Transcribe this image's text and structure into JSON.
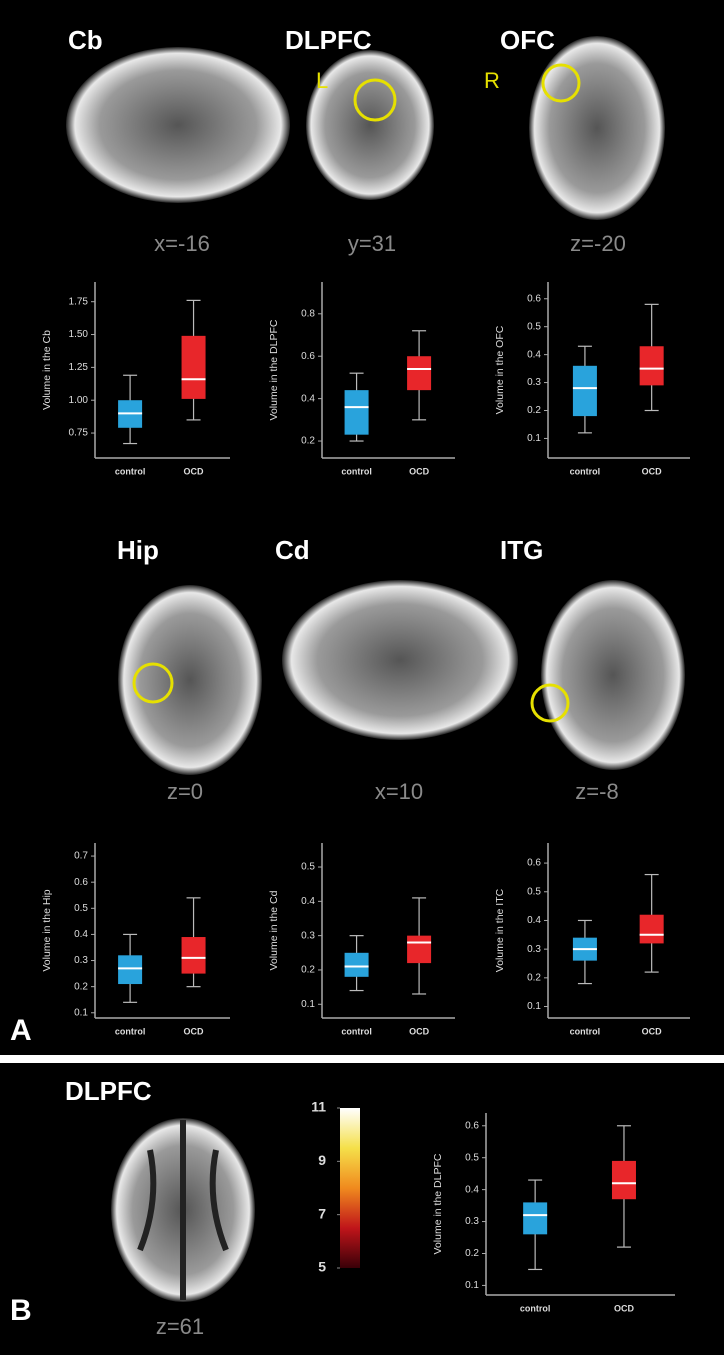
{
  "figure": {
    "panel_labels": [
      "A",
      "B"
    ],
    "side_labels": [
      "L",
      "R"
    ],
    "images": [
      {
        "title": "Cb",
        "coord": "x=-16"
      },
      {
        "title": "DLPFC",
        "coord": "y=31"
      },
      {
        "title": "OFC",
        "coord": "z=-20"
      },
      {
        "title": "Hip",
        "coord": "z=0"
      },
      {
        "title": "Cd",
        "coord": "x=10"
      },
      {
        "title": "ITG",
        "coord": "z=-8"
      },
      {
        "title": "DLPFC",
        "coord": "z=61"
      }
    ]
  },
  "chart_data": [
    {
      "type": "box",
      "y_label": "Volume in the Cb",
      "categories": [
        "control",
        "OCD"
      ],
      "colors": [
        "#29a3dc",
        "#e8262a"
      ],
      "min": [
        0.67,
        0.85
      ],
      "q1": [
        0.79,
        1.01
      ],
      "median": [
        0.9,
        1.16
      ],
      "q3": [
        1.0,
        1.49
      ],
      "max": [
        1.19,
        1.76
      ],
      "ylim": [
        0.56,
        1.9
      ],
      "yticks": [
        0.75,
        {
          "value": 1.0,
          "label": "1.00"
        },
        1.25,
        {
          "value": 1.5,
          "label": "1.50"
        },
        1.75
      ]
    },
    {
      "type": "box",
      "y_label": "Volume in the DLPFC",
      "categories": [
        "control",
        "OCD"
      ],
      "colors": [
        "#29a3dc",
        "#e8262a"
      ],
      "min": [
        0.2,
        0.3
      ],
      "q1": [
        0.23,
        0.44
      ],
      "median": [
        0.36,
        0.54
      ],
      "q3": [
        0.44,
        0.6
      ],
      "max": [
        0.52,
        0.72
      ],
      "ylim": [
        0.12,
        0.95
      ],
      "yticks": [
        0.2,
        0.4,
        0.6,
        0.8
      ]
    },
    {
      "type": "box",
      "y_label": "Volume in the OFC",
      "categories": [
        "control",
        "OCD"
      ],
      "colors": [
        "#29a3dc",
        "#e8262a"
      ],
      "min": [
        0.12,
        0.2
      ],
      "q1": [
        0.18,
        0.29
      ],
      "median": [
        0.28,
        0.35
      ],
      "q3": [
        0.36,
        0.43
      ],
      "max": [
        0.43,
        0.58
      ],
      "ylim": [
        0.03,
        0.66
      ],
      "yticks": [
        0.1,
        0.2,
        0.3,
        0.4,
        0.5,
        0.6
      ]
    },
    {
      "type": "box",
      "y_label": "Volume in the Hip",
      "categories": [
        "control",
        "OCD"
      ],
      "colors": [
        "#29a3dc",
        "#e8262a"
      ],
      "min": [
        0.14,
        0.2
      ],
      "q1": [
        0.21,
        0.25
      ],
      "median": [
        0.27,
        0.31
      ],
      "q3": [
        0.32,
        0.39
      ],
      "max": [
        0.4,
        0.54
      ],
      "ylim": [
        0.08,
        0.75
      ],
      "yticks": [
        0.1,
        0.2,
        0.3,
        0.4,
        0.5,
        0.6,
        0.7
      ]
    },
    {
      "type": "box",
      "y_label": "Volume in the Cd",
      "categories": [
        "control",
        "OCD"
      ],
      "colors": [
        "#29a3dc",
        "#e8262a"
      ],
      "min": [
        0.14,
        0.13
      ],
      "q1": [
        0.18,
        0.22
      ],
      "median": [
        0.21,
        0.28
      ],
      "q3": [
        0.25,
        0.3
      ],
      "max": [
        0.3,
        0.41
      ],
      "ylim": [
        0.06,
        0.57
      ],
      "yticks": [
        0.1,
        0.2,
        0.3,
        0.4,
        0.5
      ]
    },
    {
      "type": "box",
      "y_label": "Volume in the ITC",
      "categories": [
        "control",
        "OCD"
      ],
      "colors": [
        "#29a3dc",
        "#e8262a"
      ],
      "min": [
        0.18,
        0.22
      ],
      "q1": [
        0.26,
        0.32
      ],
      "median": [
        0.3,
        0.35
      ],
      "q3": [
        0.34,
        0.42
      ],
      "max": [
        0.4,
        0.56
      ],
      "ylim": [
        0.06,
        0.67
      ],
      "yticks": [
        0.1,
        0.2,
        0.3,
        0.4,
        0.5,
        0.6
      ]
    },
    {
      "type": "box",
      "y_label": "Volume in the DLPFC",
      "categories": [
        "control",
        "OCD"
      ],
      "colors": [
        "#29a3dc",
        "#e8262a"
      ],
      "min": [
        0.15,
        0.22
      ],
      "q1": [
        0.26,
        0.37
      ],
      "median": [
        0.32,
        0.42
      ],
      "q3": [
        0.36,
        0.49
      ],
      "max": [
        0.43,
        0.6
      ],
      "ylim": [
        0.07,
        0.64
      ],
      "yticks": [
        0.1,
        0.2,
        0.3,
        0.4,
        0.5,
        0.6
      ]
    },
    {
      "type": "colorbar",
      "colors": [
        "#3a0008",
        "#c0151a",
        "#f08a1e",
        "#f5e04a",
        "#ffffff"
      ],
      "ylim": [
        5,
        11
      ],
      "yticks": [
        5,
        7,
        9,
        11
      ]
    }
  ]
}
